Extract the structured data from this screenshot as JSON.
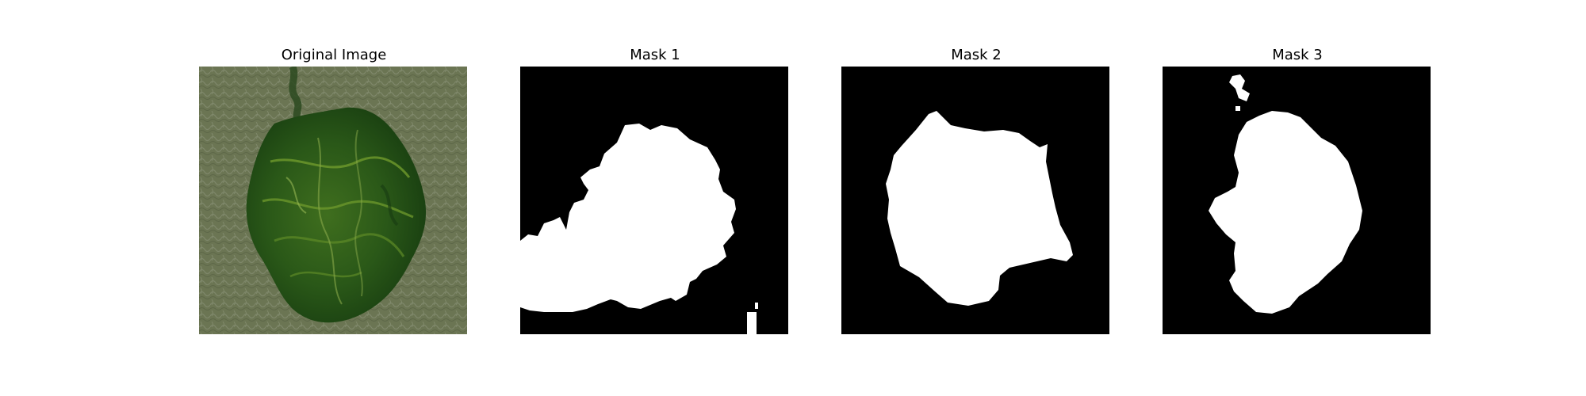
{
  "figure": {
    "panels": [
      {
        "title": "Original Image"
      },
      {
        "title": "Mask 1"
      },
      {
        "title": "Mask 2"
      },
      {
        "title": "Mask 3"
      }
    ]
  },
  "colors": {
    "background": "#ffffff",
    "mask_background": "#000000",
    "mask_foreground": "#ffffff",
    "terrain_light": "#6b7553",
    "terrain_dark": "#1f4a16",
    "vegetation_highlight": "#6f9a2c"
  }
}
